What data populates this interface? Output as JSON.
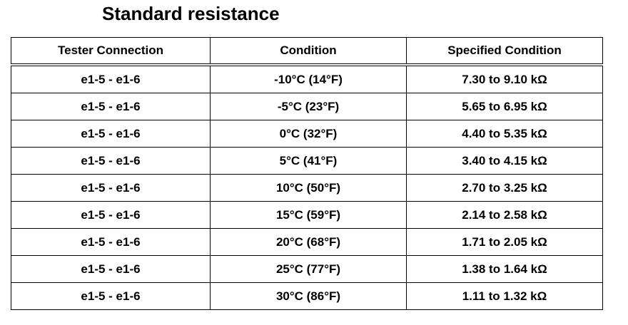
{
  "title": "Standard resistance",
  "table": {
    "headers": [
      "Tester Connection",
      "Condition",
      "Specified Condition"
    ],
    "rows": [
      [
        "e1-5 - e1-6",
        "-10°C (14°F)",
        "7.30 to 9.10 kΩ"
      ],
      [
        "e1-5 - e1-6",
        "-5°C (23°F)",
        "5.65 to 6.95 kΩ"
      ],
      [
        "e1-5 - e1-6",
        "0°C (32°F)",
        "4.40 to 5.35 kΩ"
      ],
      [
        "e1-5 - e1-6",
        "5°C (41°F)",
        "3.40 to 4.15 kΩ"
      ],
      [
        "e1-5 - e1-6",
        "10°C (50°F)",
        "2.70 to 3.25 kΩ"
      ],
      [
        "e1-5 - e1-6",
        "15°C (59°F)",
        "2.14 to 2.58 kΩ"
      ],
      [
        "e1-5 - e1-6",
        "20°C (68°F)",
        "1.71 to 2.05 kΩ"
      ],
      [
        "e1-5 - e1-6",
        "25°C (77°F)",
        "1.38 to 1.64 kΩ"
      ],
      [
        "e1-5 - e1-6",
        "30°C (86°F)",
        "1.11 to 1.32 kΩ"
      ]
    ]
  }
}
